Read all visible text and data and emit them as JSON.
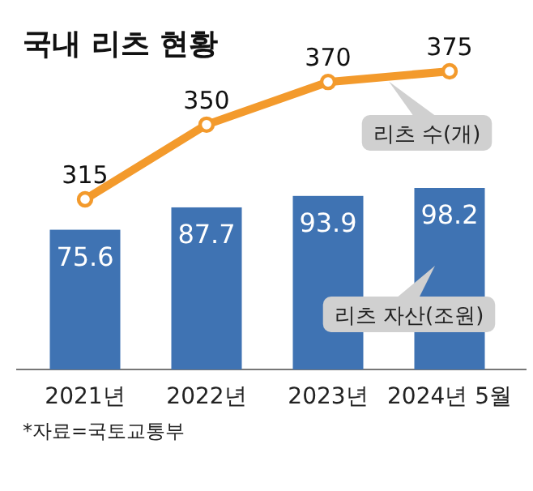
{
  "chart_data": {
    "type": "bar",
    "title": "국내 리츠 현황",
    "categories": [
      "2021년",
      "2022년",
      "2023년",
      "2024년 5월"
    ],
    "series": [
      {
        "name": "리츠 자산(조원)",
        "color": "#3f73b3",
        "values": [
          75.6,
          87.7,
          93.9,
          98.2
        ]
      },
      {
        "name": "리츠 수(개)",
        "type": "line",
        "axis": "y2",
        "color": "#f39a2c",
        "values": [
          315,
          350,
          370,
          375
        ]
      }
    ],
    "data_labels": true,
    "legend": false,
    "tick_labels": "x",
    "annotations": [
      "*자료=국토교통부"
    ]
  }
}
